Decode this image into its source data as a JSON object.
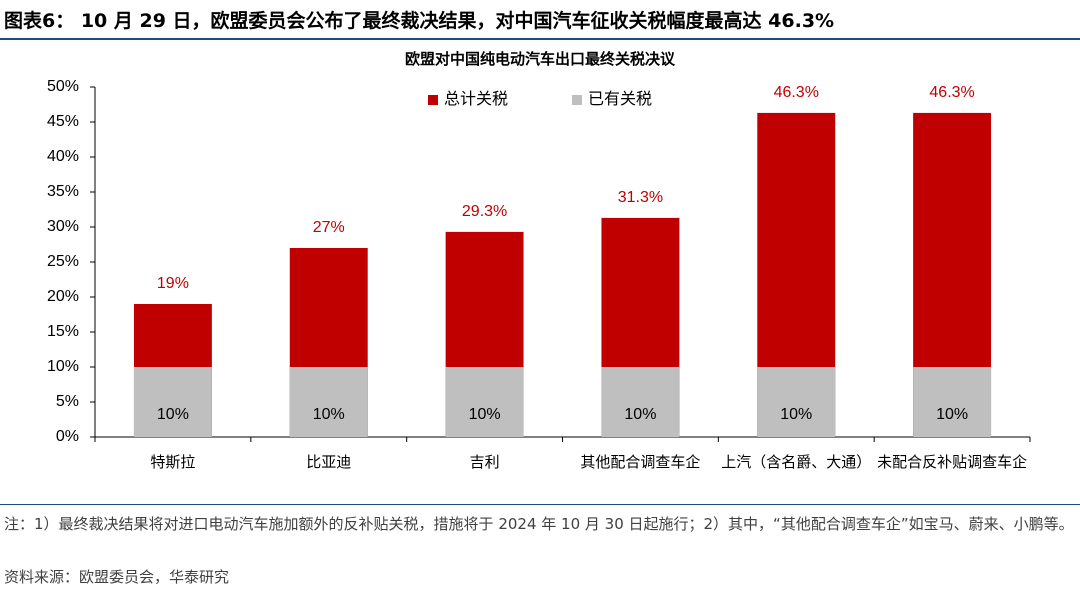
{
  "title": "图表6： 10 月 29 日，欧盟委员会公布了最终裁决结果，对中国汽车征收关税幅度最高达 46.3%",
  "chart_data": {
    "type": "bar",
    "barmode": "overlay",
    "title": "欧盟对中国纯电动汽车出口最终关税决议",
    "categories": [
      "特斯拉",
      "比亚迪",
      "吉利",
      "其他配合调查车企",
      "上汽（含名爵、大通）",
      "未配合反补贴调查车企"
    ],
    "series": [
      {
        "name": "总计关税",
        "color": "#c00000",
        "values": [
          19,
          27,
          29.3,
          31.3,
          46.3,
          46.3
        ],
        "value_labels": [
          "19%",
          "27%",
          "29.3%",
          "31.3%",
          "46.3%",
          "46.3%"
        ]
      },
      {
        "name": "已有关税",
        "color": "#bfbfbf",
        "values": [
          10,
          10,
          10,
          10,
          10,
          10
        ],
        "value_labels": [
          "10%",
          "10%",
          "10%",
          "10%",
          "10%",
          "10%"
        ]
      }
    ],
    "ylim": [
      0,
      50
    ],
    "yticks": [
      {
        "value": 0,
        "label": "0%"
      },
      {
        "value": 5,
        "label": "5%"
      },
      {
        "value": 10,
        "label": "10%"
      },
      {
        "value": 15,
        "label": "15%"
      },
      {
        "value": 20,
        "label": "20%"
      },
      {
        "value": 25,
        "label": "25%"
      },
      {
        "value": 30,
        "label": "30%"
      },
      {
        "value": 35,
        "label": "35%"
      },
      {
        "value": 40,
        "label": "40%"
      },
      {
        "value": 45,
        "label": "45%"
      },
      {
        "value": 50,
        "label": "50%"
      }
    ],
    "legend": "top-center"
  },
  "notes": [
    "注：1）最终裁决结果将对进口电动汽车施加额外的反补贴关税，措施将于 2024 年 10 月 30 日起施行；2）其中，“其他配合调查车企”如宝马、蔚来、小鹏等。",
    "资料来源：欧盟委员会，华泰研究"
  ]
}
